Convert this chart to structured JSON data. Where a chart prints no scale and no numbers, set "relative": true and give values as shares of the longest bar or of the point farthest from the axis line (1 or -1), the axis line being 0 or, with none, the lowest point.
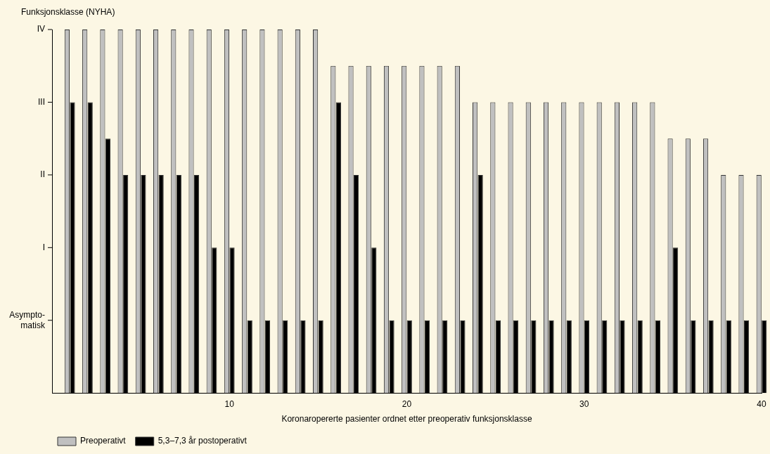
{
  "chart_data": {
    "type": "bar",
    "ylabel": "Funksjonsklasse (NYHA)",
    "xlabel": "Koronaropererte pasienter ordnet etter preoperativ funksjonsklasse",
    "x": [
      1,
      2,
      3,
      4,
      5,
      6,
      7,
      8,
      9,
      10,
      11,
      12,
      13,
      14,
      15,
      16,
      17,
      18,
      19,
      20,
      21,
      22,
      23,
      24,
      25,
      26,
      27,
      28,
      29,
      30,
      31,
      32,
      33,
      34,
      35,
      36,
      37,
      38,
      39,
      40
    ],
    "relative": true,
    "series": [
      {
        "name": "Preoperativt",
        "color": "#c0c0c0",
        "values": [
          1,
          1,
          1,
          1,
          1,
          1,
          1,
          1,
          1,
          1,
          1,
          1,
          1,
          1,
          1,
          0.9,
          0.9,
          0.9,
          0.9,
          0.9,
          0.9,
          0.9,
          0.9,
          0.8,
          0.8,
          0.8,
          0.8,
          0.8,
          0.8,
          0.8,
          0.8,
          0.8,
          0.8,
          0.8,
          0.7,
          0.7,
          0.7,
          0.6,
          0.6,
          0.6
        ]
      },
      {
        "name": "5,3–7,3 år postoperativt",
        "color": "#000000",
        "values": [
          0.8,
          0.8,
          0.7,
          0.6,
          0.6,
          0.6,
          0.6,
          0.6,
          0.4,
          0.4,
          0.2,
          0.2,
          0.2,
          0.2,
          0.2,
          0.8,
          0.6,
          0.4,
          0.2,
          0.2,
          0.2,
          0.2,
          0.2,
          0.6,
          0.2,
          0.2,
          0.2,
          0.2,
          0.2,
          0.2,
          0.2,
          0.2,
          0.2,
          0.2,
          0.4,
          0.2,
          0.2,
          0.2,
          0.2,
          0.2
        ]
      }
    ],
    "xlim": [
      0,
      40
    ],
    "xticks": [
      10,
      20,
      30,
      40
    ],
    "annotations": [
      "Asympto-\nmatisk",
      "I",
      "II",
      "III",
      "IV"
    ],
    "grid": false,
    "legend": "bottom left"
  }
}
